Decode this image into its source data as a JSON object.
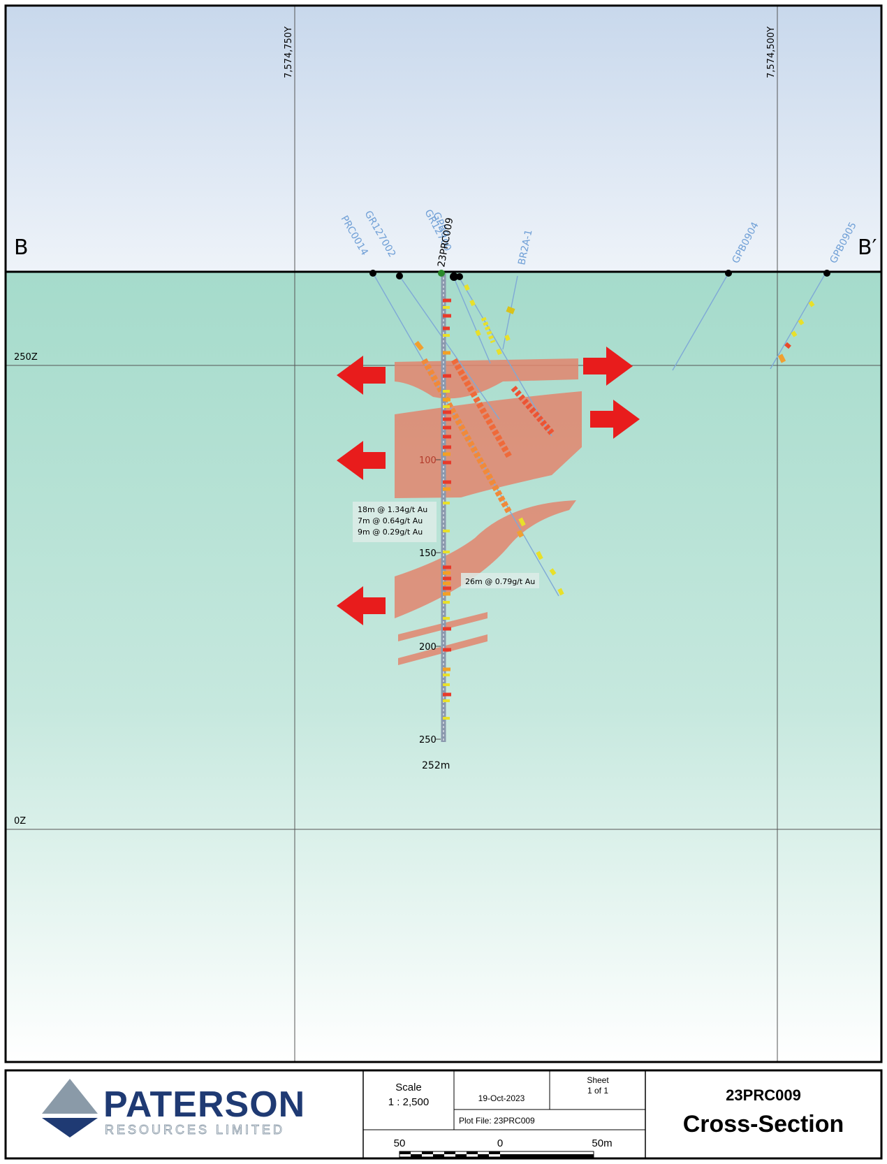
{
  "section": {
    "label_left": "B",
    "label_right": "B′",
    "northings": [
      "7,574,750Y",
      "7,574,500Y"
    ],
    "elevations": [
      "250Z",
      "0Z"
    ]
  },
  "drillholes": {
    "main_hole": "23PRC009",
    "other_holes": [
      "PRC0014",
      "GR127002",
      "GR12700",
      "GPB0",
      "BR2A-1",
      "GPB0904",
      "GPB0905"
    ],
    "depth_ticks": [
      "100",
      "150",
      "200",
      "250"
    ],
    "end_depth": "252m"
  },
  "intercepts": {
    "box1": [
      "18m @ 1.34g/t Au",
      "7m @ 0.64g/t Au",
      "9m @ 0.29g/t Au"
    ],
    "box2": "26m @ 0.79g/t Au"
  },
  "title_block": {
    "company_name": "PATERSON",
    "company_sub": "RESOURCES LIMITED",
    "scale_label": "Scale",
    "scale_value": "1 : 2,500",
    "date": "19-Oct-2023",
    "sheet_label": "Sheet",
    "sheet_value": "1 of 1",
    "plot_file": "Plot File: 23PRC009",
    "scalebar": [
      "50",
      "0",
      "50m"
    ],
    "hole_id": "23PRC009",
    "title": "Cross-Section"
  },
  "colors": {
    "sky_top": "#c9d9ec",
    "ground": "#a8dccd",
    "lode": "#e2856d",
    "arrow": "#e81c1c",
    "collar_label": "#6f9fd6"
  }
}
